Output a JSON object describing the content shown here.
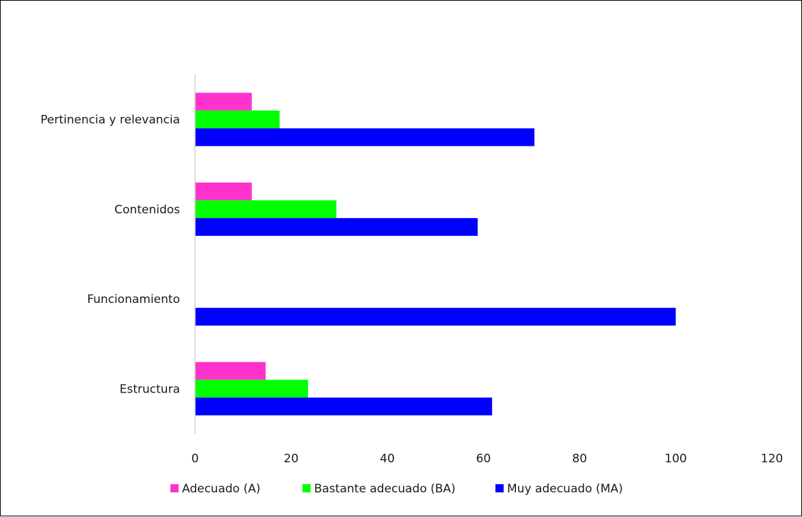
{
  "chart_data": {
    "type": "bar",
    "orientation": "horizontal",
    "categories": [
      "Pertinencia y relevancia",
      "Contenidos",
      "Funcionamiento",
      "Estructura"
    ],
    "series": [
      {
        "name": "Adecuado (A)",
        "color": "#ff33cc",
        "values": [
          11.8,
          11.8,
          0,
          14.7
        ]
      },
      {
        "name": "Bastante adecuado (BA)",
        "color": "#00ff00",
        "values": [
          17.6,
          29.4,
          0,
          23.5
        ]
      },
      {
        "name": "Muy adecuado (MA)",
        "color": "#0000ff",
        "values": [
          70.6,
          58.8,
          100,
          61.8
        ]
      }
    ],
    "xlim": [
      0,
      120
    ],
    "xticks": [
      "0",
      "20",
      "40",
      "60",
      "80",
      "100",
      "120"
    ],
    "grid": false,
    "legend": "bottom"
  }
}
